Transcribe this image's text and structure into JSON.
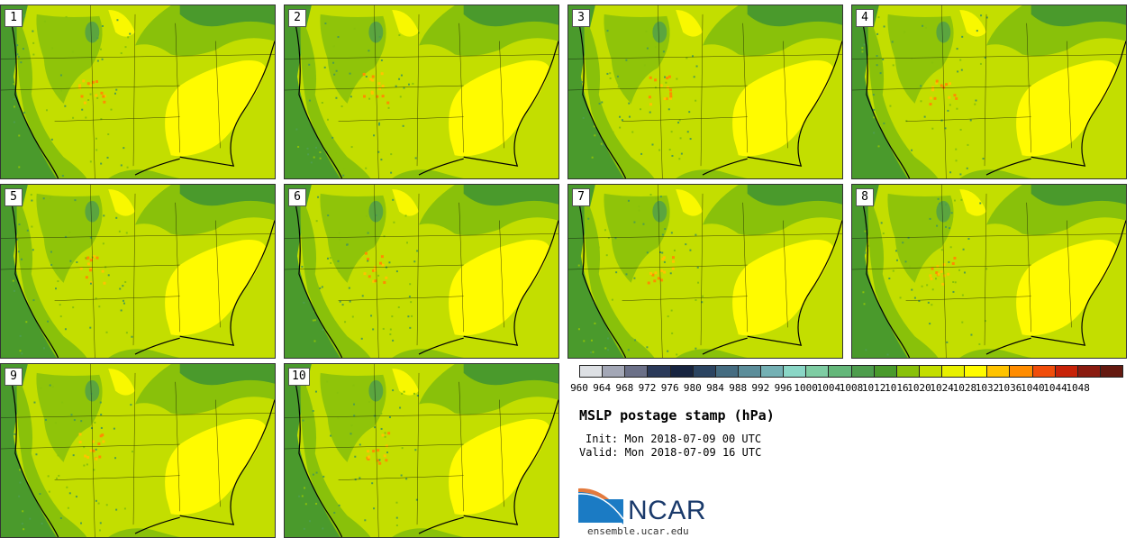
{
  "panels": [
    {
      "label": "1"
    },
    {
      "label": "2"
    },
    {
      "label": "3"
    },
    {
      "label": "4"
    },
    {
      "label": "5"
    },
    {
      "label": "6"
    },
    {
      "label": "7"
    },
    {
      "label": "8"
    },
    {
      "label": "9"
    },
    {
      "label": "10"
    }
  ],
  "colorbar": {
    "ticks": [
      "960",
      "964",
      "968",
      "972",
      "976",
      "980",
      "984",
      "988",
      "992",
      "996",
      "1000",
      "1004",
      "1008",
      "1012",
      "1016",
      "1020",
      "1024",
      "1028",
      "1032",
      "1036",
      "1040",
      "1044",
      "1048"
    ],
    "colors": [
      "#dde0e4",
      "#a3a7b6",
      "#6b7088",
      "#2b3a5a",
      "#172440",
      "#2b4461",
      "#456c81",
      "#5b8d9a",
      "#74b0b4",
      "#8ad6c6",
      "#7ecca3",
      "#64b77a",
      "#4e9d4d",
      "#4a9a2c",
      "#89c10a",
      "#c3de00",
      "#e8f000",
      "#fffb00",
      "#ffc300",
      "#ff8c00",
      "#f04d0a",
      "#c72208",
      "#8a1b10",
      "#641910"
    ]
  },
  "title": "MSLP postage stamp (hPa)",
  "init": "Init: Mon 2018-07-09 00 UTC",
  "valid": "Valid: Mon 2018-07-09 16 UTC",
  "logo": {
    "text": "NCAR"
  },
  "site": "ensemble.ucar.edu",
  "field_colors": {
    "ocean_1016": "#4a9a2c",
    "mid_1020": "#89c10a",
    "land_1020_1024": "#c3de00",
    "high_1024_1028": "#fffb00",
    "hi_1028": "#ffc300",
    "hi_1032": "#ff8c00",
    "low_1012": "#4e9d4d"
  }
}
